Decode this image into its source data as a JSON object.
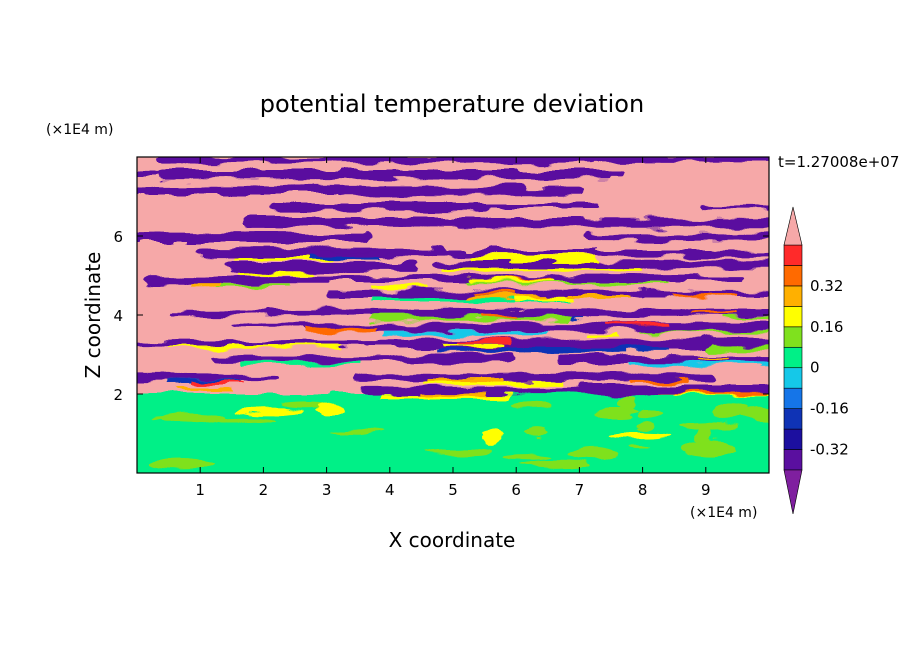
{
  "chart_data": {
    "type": "heatmap",
    "title": "potential temperature deviation",
    "xlabel": "X coordinate",
    "ylabel": "Z coordinate",
    "x_unit": "(×1E4 m)",
    "y_unit": "(×1E4 m)",
    "time_label": "t=1.27008e+07",
    "xlim": [
      0,
      10
    ],
    "ylim": [
      0,
      8
    ],
    "x_ticks": [
      "1",
      "2",
      "3",
      "4",
      "5",
      "6",
      "7",
      "8",
      "9"
    ],
    "x_tick_values": [
      1,
      2,
      3,
      4,
      5,
      6,
      7,
      8,
      9
    ],
    "y_ticks": [
      "2",
      "4",
      "6"
    ],
    "y_tick_values": [
      2,
      4,
      6
    ],
    "colorbar": {
      "levels": [
        -0.48,
        -0.4,
        -0.32,
        -0.24,
        -0.16,
        -0.08,
        0,
        0.08,
        0.16,
        0.24,
        0.32,
        0.4,
        0.48
      ],
      "colors": [
        "#7f1f9f",
        "#5a0f9f",
        "#1c0f9f",
        "#0f33b5",
        "#1575e8",
        "#15c8e8",
        "#00f087",
        "#7fe11e",
        "#ffff00",
        "#ffb000",
        "#ff6a00",
        "#ff2a2a",
        "#f6a8a8"
      ],
      "tick_labels": [
        "0.32",
        "0.16",
        "0",
        "-0.16",
        "-0.32"
      ],
      "tick_values": [
        0.32,
        0.16,
        0,
        -0.16,
        -0.32
      ],
      "extend": "both"
    },
    "grid": false
  }
}
